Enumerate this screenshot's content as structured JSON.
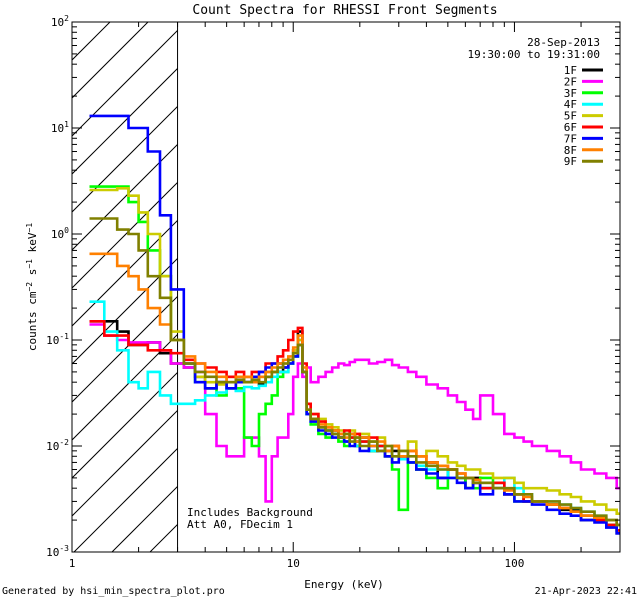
{
  "chart_data": {
    "type": "line",
    "title": "Count Spectra for RHESSI Front Segments",
    "xlabel": "Energy (keV)",
    "ylabel": "counts cm^-2 s^-1 keV^-1",
    "xscale": "log",
    "yscale": "log",
    "xlim": [
      1,
      300
    ],
    "ylim": [
      0.001,
      100
    ],
    "x_ticks": [
      {
        "value": 1,
        "label": "1"
      },
      {
        "value": 10,
        "label": "10"
      },
      {
        "value": 100,
        "label": "100"
      }
    ],
    "y_ticks": [
      {
        "value": 0.001,
        "mantissa": "10",
        "exp": "-3"
      },
      {
        "value": 0.01,
        "mantissa": "10",
        "exp": "-2"
      },
      {
        "value": 0.1,
        "mantissa": "10",
        "exp": "-1"
      },
      {
        "value": 1,
        "mantissa": "10",
        "exp": "0"
      },
      {
        "value": 10,
        "mantissa": "10",
        "exp": "1"
      },
      {
        "value": 100,
        "mantissa": "10",
        "exp": "2"
      }
    ],
    "date": "28-Sep-2013",
    "time_range": "19:30:00 to 19:31:00",
    "shaded_region": {
      "x0": 1,
      "x1": 3
    },
    "annotations": [
      "Includes Background",
      "Att A0, FDecim 1"
    ],
    "series": [
      {
        "name": "1F",
        "color": "#000000",
        "x": [
          1.2,
          1.4,
          1.6,
          1.8,
          2.0,
          2.2,
          2.5,
          2.8,
          3.2,
          3.6,
          4,
          4.5,
          5,
          5.5,
          6,
          6.5,
          7,
          7.5,
          8,
          8.5,
          9,
          9.5,
          10,
          10.5,
          11,
          11.5,
          12,
          13,
          14,
          15,
          16,
          17,
          18,
          19,
          20,
          22,
          24,
          26,
          28,
          30,
          33,
          36,
          40,
          45,
          50,
          55,
          60,
          65,
          70,
          80,
          90,
          100,
          110,
          120,
          140,
          160,
          180,
          200,
          230,
          260,
          290
        ],
        "y": [
          0.15,
          0.15,
          0.12,
          0.09,
          0.09,
          0.095,
          0.075,
          0.06,
          0.055,
          0.045,
          0.035,
          0.04,
          0.035,
          0.045,
          0.04,
          0.045,
          0.038,
          0.045,
          0.05,
          0.05,
          0.055,
          0.06,
          0.08,
          0.12,
          0.05,
          0.02,
          0.018,
          0.015,
          0.014,
          0.013,
          0.012,
          0.011,
          0.013,
          0.01,
          0.012,
          0.009,
          0.01,
          0.008,
          0.009,
          0.008,
          0.007,
          0.006,
          0.007,
          0.005,
          0.006,
          0.005,
          0.004,
          0.005,
          0.004,
          0.0045,
          0.0035,
          0.0035,
          0.003,
          0.003,
          0.0028,
          0.0025,
          0.0025,
          0.002,
          0.002,
          0.0018,
          0.0015
        ]
      },
      {
        "name": "2F",
        "color": "#ff00ff",
        "x": [
          1.2,
          1.4,
          1.6,
          1.8,
          2.0,
          2.2,
          2.5,
          2.8,
          3.2,
          3.6,
          4,
          4.5,
          5,
          5.5,
          6,
          6.5,
          7,
          7.5,
          8,
          8.5,
          9,
          9.5,
          10,
          10.5,
          11,
          11.5,
          12,
          13,
          14,
          15,
          16,
          17,
          18,
          19,
          20,
          22,
          24,
          26,
          28,
          30,
          33,
          36,
          40,
          45,
          50,
          55,
          60,
          65,
          70,
          80,
          90,
          100,
          110,
          120,
          140,
          160,
          180,
          200,
          230,
          260,
          290
        ],
        "y": [
          0.14,
          0.11,
          0.1,
          0.095,
          0.095,
          0.095,
          0.08,
          0.06,
          0.055,
          0.05,
          0.02,
          0.01,
          0.008,
          0.008,
          0.012,
          0.012,
          0.008,
          0.003,
          0.008,
          0.012,
          0.012,
          0.02,
          0.045,
          0.06,
          0.045,
          0.055,
          0.04,
          0.045,
          0.05,
          0.055,
          0.06,
          0.058,
          0.062,
          0.065,
          0.065,
          0.06,
          0.062,
          0.065,
          0.058,
          0.055,
          0.05,
          0.045,
          0.038,
          0.035,
          0.03,
          0.026,
          0.022,
          0.018,
          0.03,
          0.02,
          0.013,
          0.012,
          0.011,
          0.01,
          0.009,
          0.008,
          0.007,
          0.006,
          0.0055,
          0.005,
          0.004
        ]
      },
      {
        "name": "3F",
        "color": "#00ff00",
        "x": [
          1.2,
          1.4,
          1.6,
          1.8,
          2.0,
          2.2,
          2.5,
          2.8,
          3.2,
          3.6,
          4,
          4.5,
          5,
          5.5,
          6,
          6.5,
          7,
          7.5,
          8,
          8.5,
          9,
          9.5,
          10,
          10.5,
          11,
          11.5,
          12,
          13,
          14,
          15,
          16,
          17,
          18,
          19,
          20,
          22,
          24,
          26,
          28,
          30,
          33,
          36,
          40,
          45,
          50,
          55,
          60,
          65,
          70,
          80,
          90,
          100,
          110,
          120,
          140,
          160,
          180,
          200,
          230,
          260,
          290
        ],
        "y": [
          2.8,
          2.8,
          2.8,
          2.0,
          1.3,
          0.7,
          0.4,
          0.1,
          0.06,
          0.04,
          0.035,
          0.03,
          0.035,
          0.035,
          0.012,
          0.01,
          0.02,
          0.025,
          0.03,
          0.045,
          0.05,
          0.06,
          0.07,
          0.09,
          0.05,
          0.02,
          0.016,
          0.013,
          0.012,
          0.014,
          0.011,
          0.01,
          0.012,
          0.01,
          0.011,
          0.009,
          0.01,
          0.008,
          0.006,
          0.0025,
          0.007,
          0.006,
          0.005,
          0.004,
          0.006,
          0.005,
          0.004,
          0.004,
          0.005,
          0.004,
          0.0035,
          0.003,
          0.003,
          0.003,
          0.0028,
          0.0026,
          0.0024,
          0.0022,
          0.002,
          0.0018,
          0.0016
        ]
      },
      {
        "name": "4F",
        "color": "#00ffff",
        "x": [
          1.2,
          1.4,
          1.6,
          1.8,
          2.0,
          2.2,
          2.5,
          2.8,
          3.2,
          3.6,
          4,
          4.5,
          5,
          5.5,
          6,
          6.5,
          7,
          7.5,
          8,
          8.5,
          9,
          9.5,
          10,
          10.5,
          11,
          11.5,
          12,
          13,
          14,
          15,
          16,
          17,
          18,
          19,
          20,
          22,
          24,
          26,
          28,
          30,
          33,
          36,
          40,
          45,
          50,
          55,
          60,
          65,
          70,
          80,
          90,
          100,
          110,
          120,
          140,
          160,
          180,
          200,
          230,
          260,
          290
        ],
        "y": [
          0.23,
          0.12,
          0.08,
          0.04,
          0.035,
          0.05,
          0.03,
          0.025,
          0.025,
          0.027,
          0.03,
          0.032,
          0.035,
          0.033,
          0.036,
          0.035,
          0.037,
          0.04,
          0.045,
          0.05,
          0.05,
          0.06,
          0.07,
          0.1,
          0.05,
          0.02,
          0.017,
          0.015,
          0.014,
          0.013,
          0.012,
          0.011,
          0.012,
          0.01,
          0.011,
          0.009,
          0.01,
          0.009,
          0.008,
          0.0075,
          0.007,
          0.0065,
          0.006,
          0.006,
          0.005,
          0.005,
          0.005,
          0.0045,
          0.004,
          0.0045,
          0.005,
          0.004,
          0.0035,
          0.003,
          0.003,
          0.0028,
          0.0026,
          0.0024,
          0.0022,
          0.002,
          0.0018
        ]
      },
      {
        "name": "5F",
        "color": "#cccc00",
        "x": [
          1.2,
          1.4,
          1.6,
          1.8,
          2.0,
          2.2,
          2.5,
          2.8,
          3.2,
          3.6,
          4,
          4.5,
          5,
          5.5,
          6,
          6.5,
          7,
          7.5,
          8,
          8.5,
          9,
          9.5,
          10,
          10.5,
          11,
          11.5,
          12,
          13,
          14,
          15,
          16,
          17,
          18,
          19,
          20,
          22,
          24,
          26,
          28,
          30,
          33,
          36,
          40,
          45,
          50,
          55,
          60,
          65,
          70,
          80,
          90,
          100,
          110,
          120,
          140,
          160,
          180,
          200,
          230,
          260,
          290
        ],
        "y": [
          2.6,
          2.6,
          2.7,
          2.3,
          1.6,
          1.0,
          0.4,
          0.12,
          0.06,
          0.045,
          0.04,
          0.038,
          0.045,
          0.04,
          0.045,
          0.04,
          0.045,
          0.05,
          0.05,
          0.06,
          0.06,
          0.065,
          0.08,
          0.1,
          0.05,
          0.025,
          0.02,
          0.018,
          0.016,
          0.015,
          0.014,
          0.013,
          0.014,
          0.012,
          0.013,
          0.011,
          0.012,
          0.01,
          0.01,
          0.009,
          0.011,
          0.008,
          0.009,
          0.008,
          0.007,
          0.0065,
          0.006,
          0.006,
          0.0055,
          0.005,
          0.005,
          0.0045,
          0.004,
          0.004,
          0.0038,
          0.0035,
          0.0033,
          0.003,
          0.0028,
          0.0025,
          0.0023
        ]
      },
      {
        "name": "6F",
        "color": "#ff0000",
        "x": [
          1.2,
          1.4,
          1.6,
          1.8,
          2.0,
          2.2,
          2.5,
          2.8,
          3.2,
          3.6,
          4,
          4.5,
          5,
          5.5,
          6,
          6.5,
          7,
          7.5,
          8,
          8.5,
          9,
          9.5,
          10,
          10.5,
          11,
          11.5,
          12,
          13,
          14,
          15,
          16,
          17,
          18,
          19,
          20,
          22,
          24,
          26,
          28,
          30,
          33,
          36,
          40,
          45,
          50,
          55,
          60,
          65,
          70,
          80,
          90,
          100,
          110,
          120,
          140,
          160,
          180,
          200,
          230,
          260,
          290
        ],
        "y": [
          0.15,
          0.11,
          0.11,
          0.09,
          0.09,
          0.08,
          0.08,
          0.075,
          0.065,
          0.06,
          0.055,
          0.05,
          0.045,
          0.05,
          0.045,
          0.05,
          0.05,
          0.06,
          0.06,
          0.07,
          0.08,
          0.1,
          0.12,
          0.13,
          0.06,
          0.025,
          0.02,
          0.017,
          0.015,
          0.014,
          0.013,
          0.014,
          0.012,
          0.013,
          0.011,
          0.012,
          0.01,
          0.009,
          0.01,
          0.008,
          0.009,
          0.008,
          0.007,
          0.0065,
          0.006,
          0.0055,
          0.005,
          0.0045,
          0.004,
          0.0045,
          0.0035,
          0.0035,
          0.003,
          0.003,
          0.0028,
          0.0026,
          0.0024,
          0.0022,
          0.002,
          0.0018,
          0.0016
        ]
      },
      {
        "name": "7F",
        "color": "#0000ff",
        "x": [
          1.2,
          1.4,
          1.6,
          1.8,
          2.0,
          2.2,
          2.5,
          2.8,
          3.2,
          3.6,
          4,
          4.5,
          5,
          5.5,
          6,
          6.5,
          7,
          7.5,
          8,
          8.5,
          9,
          9.5,
          10,
          10.5,
          11,
          11.5,
          12,
          13,
          14,
          15,
          16,
          17,
          18,
          19,
          20,
          22,
          24,
          26,
          28,
          30,
          33,
          36,
          40,
          45,
          50,
          55,
          60,
          65,
          70,
          80,
          90,
          100,
          110,
          120,
          140,
          160,
          180,
          200,
          230,
          260,
          290
        ],
        "y": [
          13,
          13,
          13,
          10,
          10,
          6,
          1.5,
          0.3,
          0.06,
          0.04,
          0.035,
          0.04,
          0.035,
          0.04,
          0.04,
          0.045,
          0.05,
          0.055,
          0.06,
          0.06,
          0.055,
          0.06,
          0.07,
          0.09,
          0.05,
          0.02,
          0.017,
          0.014,
          0.013,
          0.012,
          0.012,
          0.011,
          0.01,
          0.011,
          0.009,
          0.01,
          0.009,
          0.008,
          0.007,
          0.008,
          0.007,
          0.006,
          0.0055,
          0.005,
          0.005,
          0.0045,
          0.004,
          0.0045,
          0.0035,
          0.004,
          0.0035,
          0.003,
          0.003,
          0.0028,
          0.0025,
          0.0023,
          0.0022,
          0.002,
          0.0019,
          0.0017,
          0.0015
        ]
      },
      {
        "name": "8F",
        "color": "#ff8000",
        "x": [
          1.2,
          1.4,
          1.6,
          1.8,
          2.0,
          2.2,
          2.5,
          2.8,
          3.2,
          3.6,
          4,
          4.5,
          5,
          5.5,
          6,
          6.5,
          7,
          7.5,
          8,
          8.5,
          9,
          9.5,
          10,
          10.5,
          11,
          11.5,
          12,
          13,
          14,
          15,
          16,
          17,
          18,
          19,
          20,
          22,
          24,
          26,
          28,
          30,
          33,
          36,
          40,
          45,
          50,
          55,
          60,
          65,
          70,
          80,
          90,
          100,
          110,
          120,
          140,
          160,
          180,
          200,
          230,
          260,
          290
        ],
        "y": [
          0.65,
          0.65,
          0.5,
          0.4,
          0.3,
          0.2,
          0.14,
          0.1,
          0.07,
          0.06,
          0.05,
          0.045,
          0.04,
          0.045,
          0.045,
          0.04,
          0.045,
          0.05,
          0.055,
          0.06,
          0.065,
          0.07,
          0.085,
          0.11,
          0.055,
          0.022,
          0.018,
          0.016,
          0.015,
          0.014,
          0.013,
          0.012,
          0.013,
          0.011,
          0.012,
          0.01,
          0.011,
          0.009,
          0.01,
          0.008,
          0.009,
          0.008,
          0.007,
          0.0065,
          0.006,
          0.0055,
          0.005,
          0.0048,
          0.0045,
          0.004,
          0.0038,
          0.0035,
          0.0033,
          0.003,
          0.0028,
          0.0026,
          0.0024,
          0.0022,
          0.0021,
          0.002,
          0.0018
        ]
      },
      {
        "name": "9F",
        "color": "#808000",
        "x": [
          1.2,
          1.4,
          1.6,
          1.8,
          2.0,
          2.2,
          2.5,
          2.8,
          3.2,
          3.6,
          4,
          4.5,
          5,
          5.5,
          6,
          6.5,
          7,
          7.5,
          8,
          8.5,
          9,
          9.5,
          10,
          10.5,
          11,
          11.5,
          12,
          13,
          14,
          15,
          16,
          17,
          18,
          19,
          20,
          22,
          24,
          26,
          28,
          30,
          33,
          36,
          40,
          45,
          50,
          55,
          60,
          65,
          70,
          80,
          90,
          100,
          110,
          120,
          140,
          160,
          180,
          200,
          230,
          260,
          290
        ],
        "y": [
          1.4,
          1.4,
          1.1,
          1.0,
          0.7,
          0.4,
          0.25,
          0.1,
          0.06,
          0.05,
          0.045,
          0.04,
          0.04,
          0.042,
          0.04,
          0.042,
          0.04,
          0.045,
          0.05,
          0.055,
          0.06,
          0.065,
          0.075,
          0.09,
          0.05,
          0.022,
          0.018,
          0.015,
          0.014,
          0.013,
          0.012,
          0.013,
          0.011,
          0.012,
          0.01,
          0.011,
          0.009,
          0.01,
          0.008,
          0.009,
          0.008,
          0.007,
          0.0065,
          0.006,
          0.006,
          0.005,
          0.005,
          0.0045,
          0.0045,
          0.004,
          0.004,
          0.0035,
          0.0035,
          0.003,
          0.003,
          0.0028,
          0.0026,
          0.0024,
          0.0022,
          0.002,
          0.0018
        ]
      }
    ]
  },
  "footer": {
    "generated_by": "Generated by hsi_min_spectra_plot.pro",
    "timestamp": "21-Apr-2023 22:41"
  }
}
